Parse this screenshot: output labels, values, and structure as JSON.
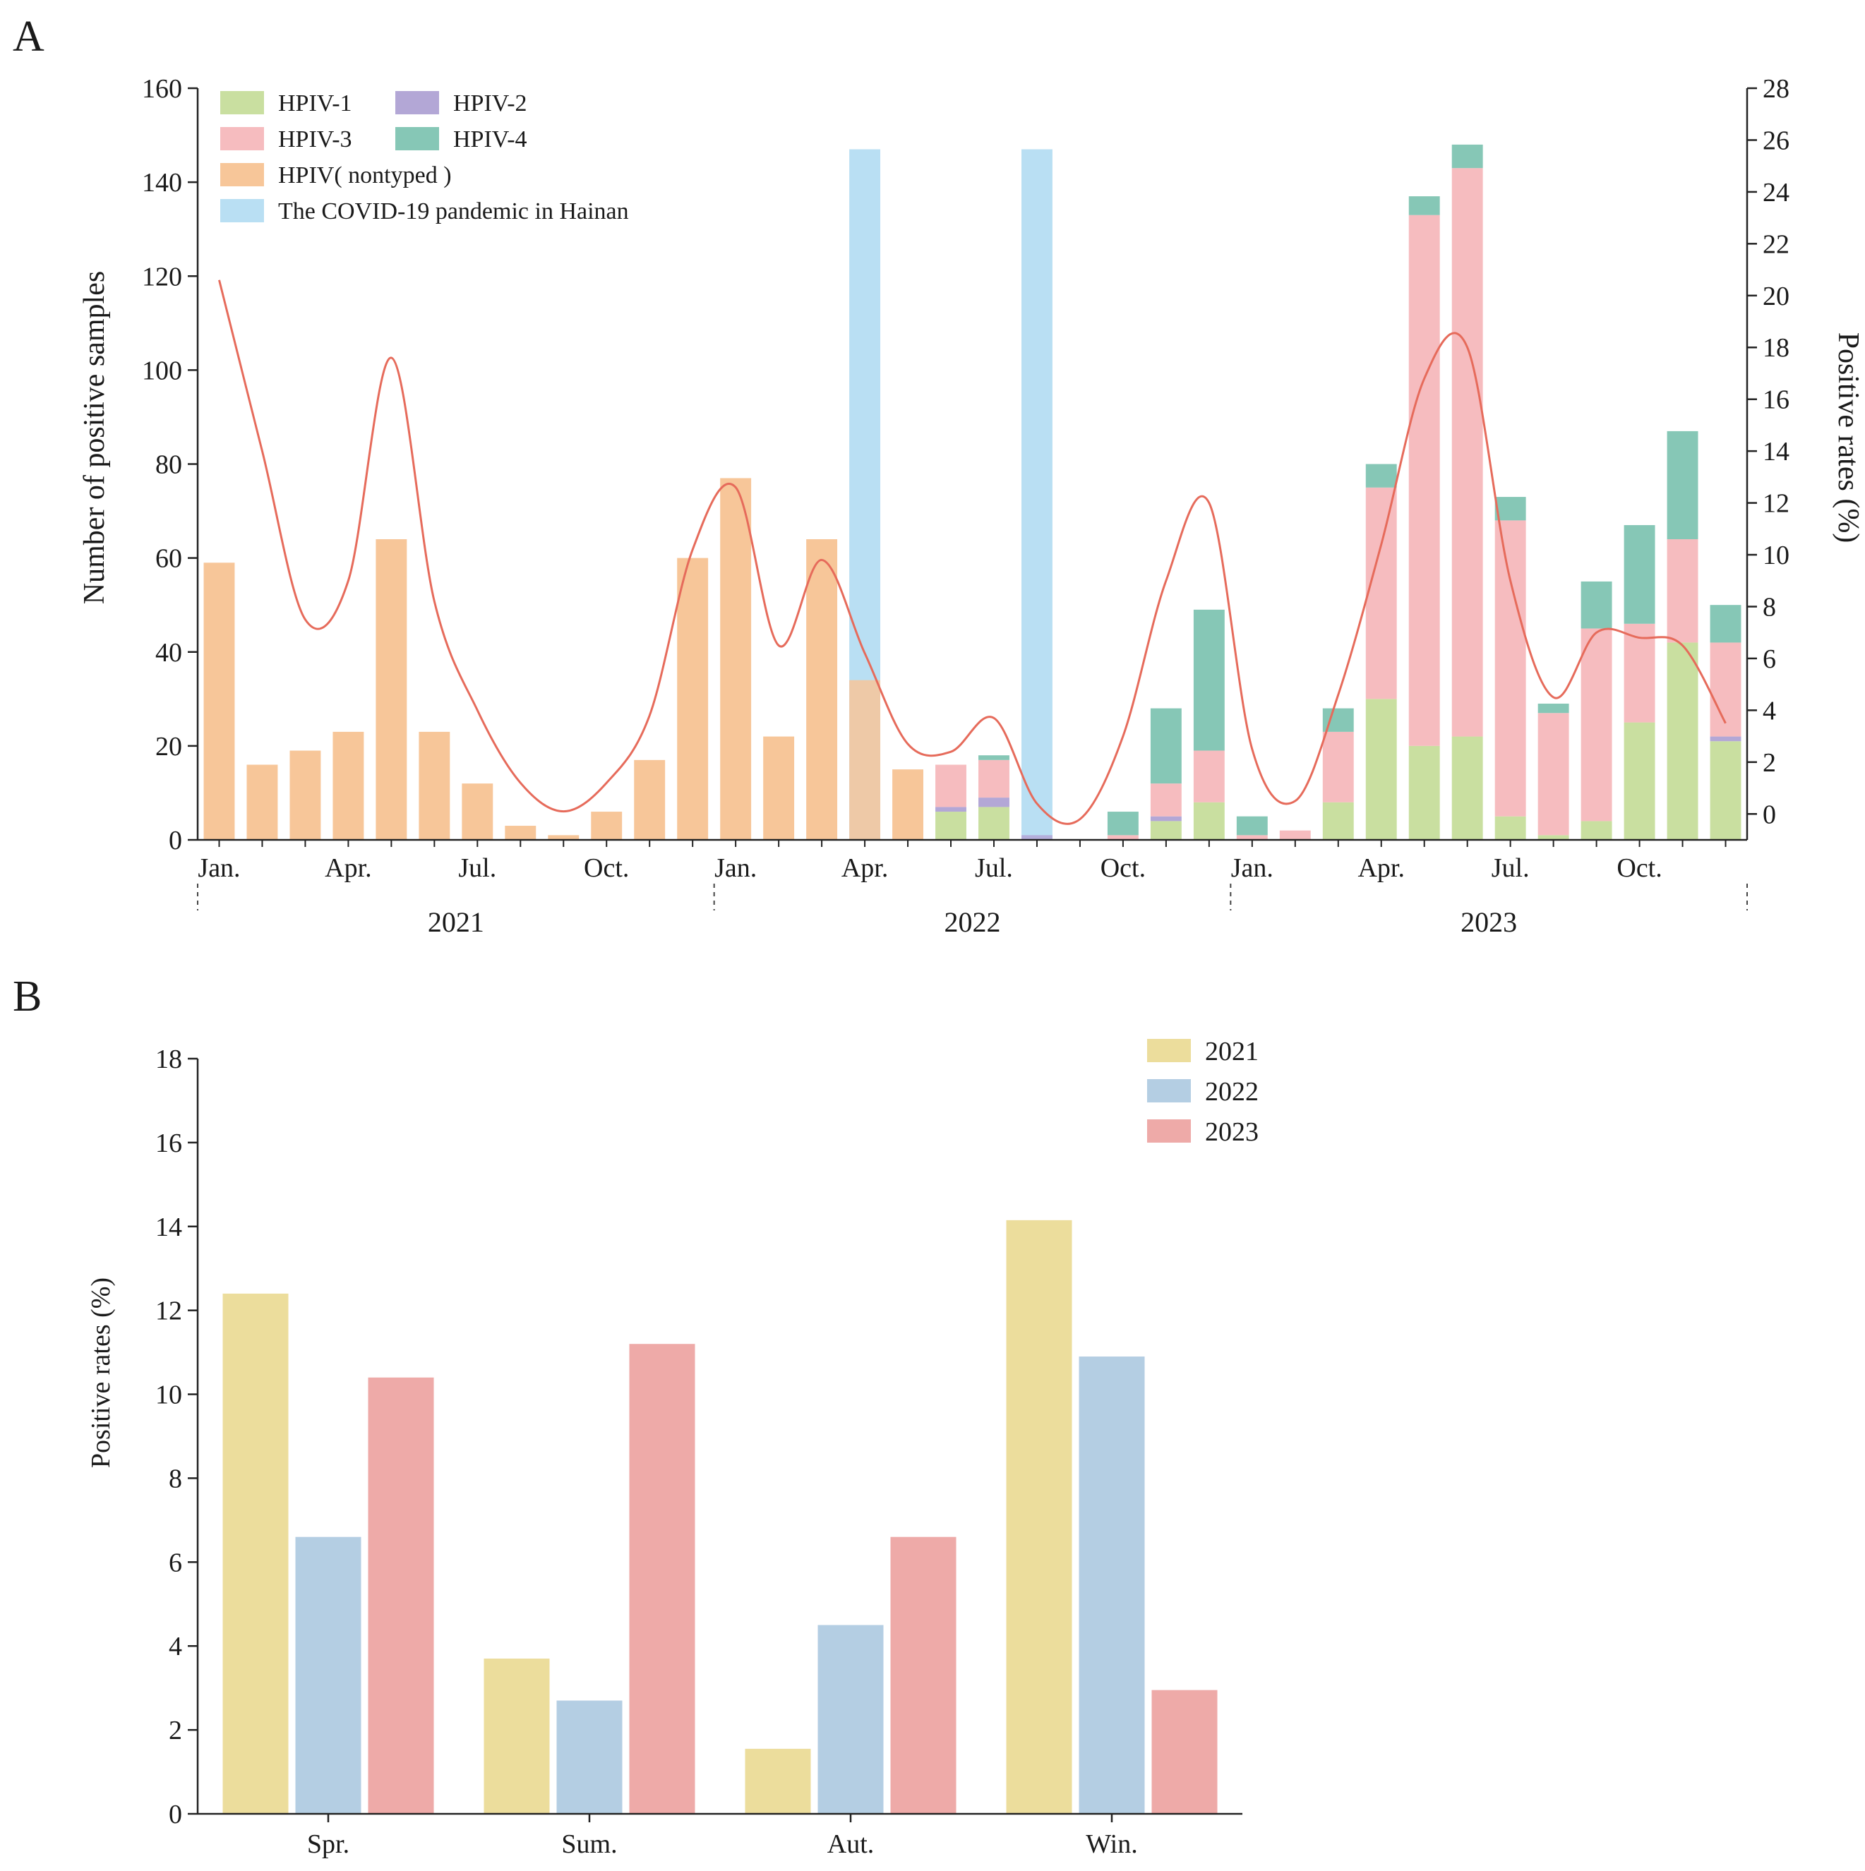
{
  "panel_a_label": "A",
  "panel_b_label": "B",
  "colors": {
    "hpiv1": "#c9dfa0",
    "hpiv2": "#b3a7d6",
    "hpiv3": "#f6bcbf",
    "hpiv4": "#86c7b6",
    "nontyped": "#f7c699",
    "covid": "#b9dff3",
    "line": "#e66b5b",
    "y2021": "#ecdd9c",
    "y2022": "#b4cee3",
    "y2023": "#eeaaa8"
  },
  "chart_data": [
    {
      "id": "A",
      "type": "bar",
      "stacked": true,
      "title": "",
      "ylabel": "Number of positive samples",
      "y2label": "Positive rates (%)",
      "ylim": [
        0,
        160
      ],
      "yticks": [
        0,
        20,
        40,
        60,
        80,
        100,
        120,
        140,
        160
      ],
      "y2lim": [
        -1,
        28
      ],
      "y2ticks": [
        0,
        2,
        4,
        6,
        8,
        10,
        12,
        14,
        16,
        18,
        20,
        22,
        24,
        26,
        28
      ],
      "x_tick_labels": [
        {
          "month": 0,
          "label": "Jan."
        },
        {
          "month": 3,
          "label": "Apr."
        },
        {
          "month": 6,
          "label": "Jul."
        },
        {
          "month": 9,
          "label": "Oct."
        },
        {
          "month": 12,
          "label": "Jan."
        },
        {
          "month": 15,
          "label": "Apr."
        },
        {
          "month": 18,
          "label": "Jul."
        },
        {
          "month": 21,
          "label": "Oct."
        },
        {
          "month": 24,
          "label": "Jan."
        },
        {
          "month": 27,
          "label": "Apr."
        },
        {
          "month": 30,
          "label": "Jul."
        },
        {
          "month": 33,
          "label": "Oct."
        }
      ],
      "years": [
        {
          "label": "2021",
          "start": 0,
          "end": 11
        },
        {
          "label": "2022",
          "start": 12,
          "end": 23
        },
        {
          "label": "2023",
          "start": 24,
          "end": 35
        }
      ],
      "legend": [
        {
          "key": "hpiv1",
          "label": "HPIV-1"
        },
        {
          "key": "hpiv2",
          "label": "HPIV-2"
        },
        {
          "key": "hpiv3",
          "label": "HPIV-3"
        },
        {
          "key": "hpiv4",
          "label": "HPIV-4"
        },
        {
          "key": "nontyped",
          "label": "HPIV( nontyped )"
        },
        {
          "key": "covid",
          "label": "The COVID-19 pandemic in Hainan"
        }
      ],
      "covid_periods": [
        15,
        19
      ],
      "covid_value": 147,
      "series": [
        {
          "key": "nontyped",
          "name": "HPIV( nontyped )",
          "values": [
            59,
            16,
            19,
            23,
            64,
            23,
            12,
            3,
            1,
            6,
            17,
            60,
            77,
            22,
            64,
            34,
            15,
            0,
            0,
            0,
            0,
            0,
            0,
            0,
            0,
            0,
            0,
            0,
            0,
            0,
            0,
            0,
            0,
            0,
            0,
            0
          ]
        },
        {
          "key": "hpiv1",
          "name": "HPIV-1",
          "values": [
            0,
            0,
            0,
            0,
            0,
            0,
            0,
            0,
            0,
            0,
            0,
            0,
            0,
            0,
            0,
            0,
            0,
            6,
            7,
            0,
            0,
            0,
            4,
            8,
            0,
            0,
            8,
            30,
            20,
            22,
            5,
            1,
            4,
            25,
            42,
            21
          ]
        },
        {
          "key": "hpiv2",
          "name": "HPIV-2",
          "values": [
            0,
            0,
            0,
            0,
            0,
            0,
            0,
            0,
            0,
            0,
            0,
            0,
            0,
            0,
            0,
            0,
            0,
            1,
            2,
            1,
            0,
            0,
            1,
            0,
            0,
            0,
            0,
            0,
            0,
            0,
            0,
            0,
            0,
            0,
            0,
            1
          ]
        },
        {
          "key": "hpiv3",
          "name": "HPIV-3",
          "values": [
            0,
            0,
            0,
            0,
            0,
            0,
            0,
            0,
            0,
            0,
            0,
            0,
            0,
            0,
            0,
            0,
            0,
            9,
            8,
            0,
            0,
            1,
            7,
            11,
            1,
            2,
            15,
            45,
            113,
            121,
            63,
            26,
            41,
            21,
            22,
            20
          ]
        },
        {
          "key": "hpiv4",
          "name": "HPIV-4",
          "values": [
            0,
            0,
            0,
            0,
            0,
            0,
            0,
            0,
            0,
            0,
            0,
            0,
            0,
            0,
            0,
            0,
            0,
            0,
            1,
            0,
            0,
            5,
            16,
            30,
            4,
            0,
            5,
            5,
            4,
            5,
            5,
            2,
            10,
            21,
            23,
            8
          ]
        }
      ],
      "rate_series": {
        "name": "Positive rates (%)",
        "values": [
          20.6,
          14.0,
          7.5,
          9.0,
          17.6,
          8.2,
          4.0,
          1.2,
          0.1,
          1.2,
          3.8,
          10.2,
          12.6,
          6.5,
          9.8,
          6.2,
          2.7,
          2.4,
          3.7,
          0.4,
          -0.2,
          3.0,
          9.0,
          12.0,
          2.5,
          0.5,
          4.6,
          10.4,
          16.8,
          18.0,
          9.0,
          4.5,
          7.0,
          6.8,
          6.5,
          3.5
        ]
      }
    },
    {
      "id": "B",
      "type": "bar",
      "title": "",
      "xlabel": "",
      "ylabel": "Positive rates (%)",
      "ylim": [
        0,
        18
      ],
      "yticks": [
        0,
        2,
        4,
        6,
        8,
        10,
        12,
        14,
        16,
        18
      ],
      "categories": [
        "Spr.",
        "Sum.",
        "Aut.",
        "Win."
      ],
      "series": [
        {
          "key": "y2021",
          "name": "2021",
          "values": [
            12.4,
            3.7,
            1.55,
            14.15
          ]
        },
        {
          "key": "y2022",
          "name": "2022",
          "values": [
            6.6,
            2.7,
            4.5,
            10.9
          ]
        },
        {
          "key": "y2023",
          "name": "2023",
          "values": [
            10.4,
            11.2,
            6.6,
            2.95
          ]
        }
      ],
      "legend_position": "top-right"
    }
  ]
}
